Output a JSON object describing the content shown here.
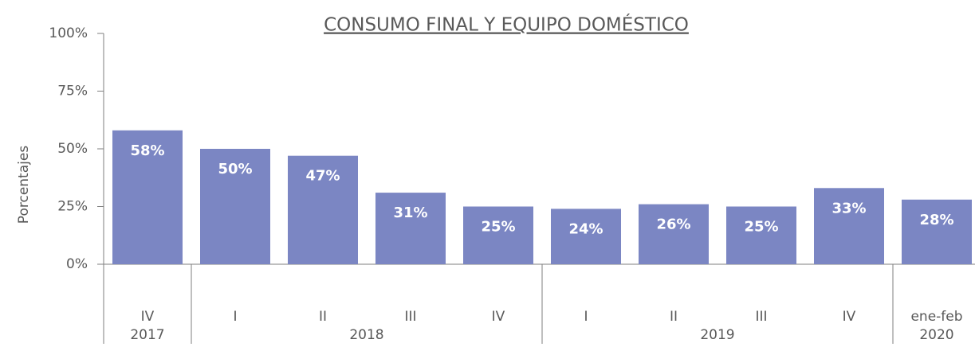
{
  "chart_data": {
    "type": "bar",
    "title": "CONSUMO FINAL Y EQUIPO DOMÉSTICO",
    "y_label": "Porcentajes",
    "groups": [
      {
        "name": "2017",
        "categories": [
          "IV"
        ]
      },
      {
        "name": "2018",
        "categories": [
          "I",
          "II",
          "III",
          "IV"
        ]
      },
      {
        "name": "2019",
        "categories": [
          "I",
          "II",
          "III",
          "IV"
        ]
      },
      {
        "name": "2020",
        "categories": [
          "ene-feb"
        ]
      }
    ],
    "values": [
      58,
      50,
      47,
      31,
      25,
      24,
      26,
      25,
      33,
      28
    ],
    "value_labels": [
      "58%",
      "50%",
      "47%",
      "31%",
      "25%",
      "24%",
      "26%",
      "25%",
      "33%",
      "28%"
    ],
    "color": "#7b86c3",
    "ylim": [
      0,
      100
    ],
    "yticks": [
      {
        "value": 0,
        "label": "0%"
      },
      {
        "value": 25,
        "label": "25%"
      },
      {
        "value": 50,
        "label": "50%"
      },
      {
        "value": 75,
        "label": "75%"
      },
      {
        "value": 100,
        "label": "100%"
      }
    ]
  }
}
